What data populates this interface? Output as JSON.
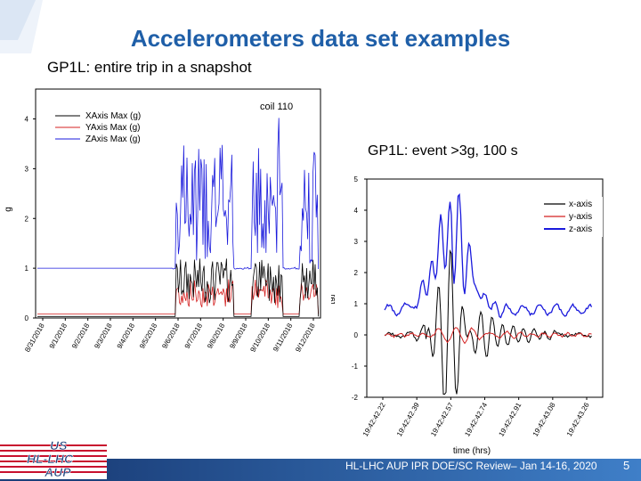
{
  "slide": {
    "title": "Accelerometers data set examples",
    "subtitle": "GP1L: entire trip in a snapshot",
    "right_caption": "GP1L: event >3g, 100 s",
    "footer": "HL-LHC AUP IPR DOE/SC Review– Jan 14-16, 2020",
    "page_number": "5",
    "logo_text": [
      "US",
      "HL-LHC",
      "AUP"
    ],
    "colors": {
      "title": "#1f5fa8",
      "footer_bar": "#1b3f7a"
    }
  },
  "chart_data": [
    {
      "type": "line",
      "title": "coil 110",
      "ylabel": "g",
      "xlabel": "",
      "ylim": [
        0,
        4.6
      ],
      "yticks": [
        0,
        1,
        2,
        3,
        4
      ],
      "categories": [
        "8/31/2018",
        "9/1/2018",
        "9/2/2018",
        "9/3/2018",
        "9/4/2018",
        "9/5/2018",
        "9/6/2018",
        "9/7/2018",
        "9/8/2018",
        "9/9/2018",
        "9/10/2018",
        "9/11/2018",
        "9/12/2018"
      ],
      "legend_position": "top-left",
      "series": [
        {
          "name": "XAxis Max (g)",
          "color": "#000000"
        },
        {
          "name": "YAxis Max (g)",
          "color": "#d42020"
        },
        {
          "name": "ZAxis Max (g)",
          "color": "#1a1adc"
        }
      ]
    },
    {
      "type": "line",
      "title": "",
      "ylabel": "[g]",
      "xlabel": "time (hrs)",
      "ylim": [
        -2,
        5
      ],
      "yticks": [
        -2,
        -1,
        0,
        1,
        2,
        3,
        4,
        5
      ],
      "categories": [
        "19:42:42.22",
        "19:42:42.39",
        "19:42:42.57",
        "19:42:42.74",
        "19:42:42.91",
        "19:42:43.08",
        "19:42:43.26"
      ],
      "legend_position": "top-right",
      "series": [
        {
          "name": "x-axis",
          "color": "#000000"
        },
        {
          "name": "y-axis",
          "color": "#d42020"
        },
        {
          "name": "z-axis",
          "color": "#1a1adc"
        }
      ]
    }
  ]
}
